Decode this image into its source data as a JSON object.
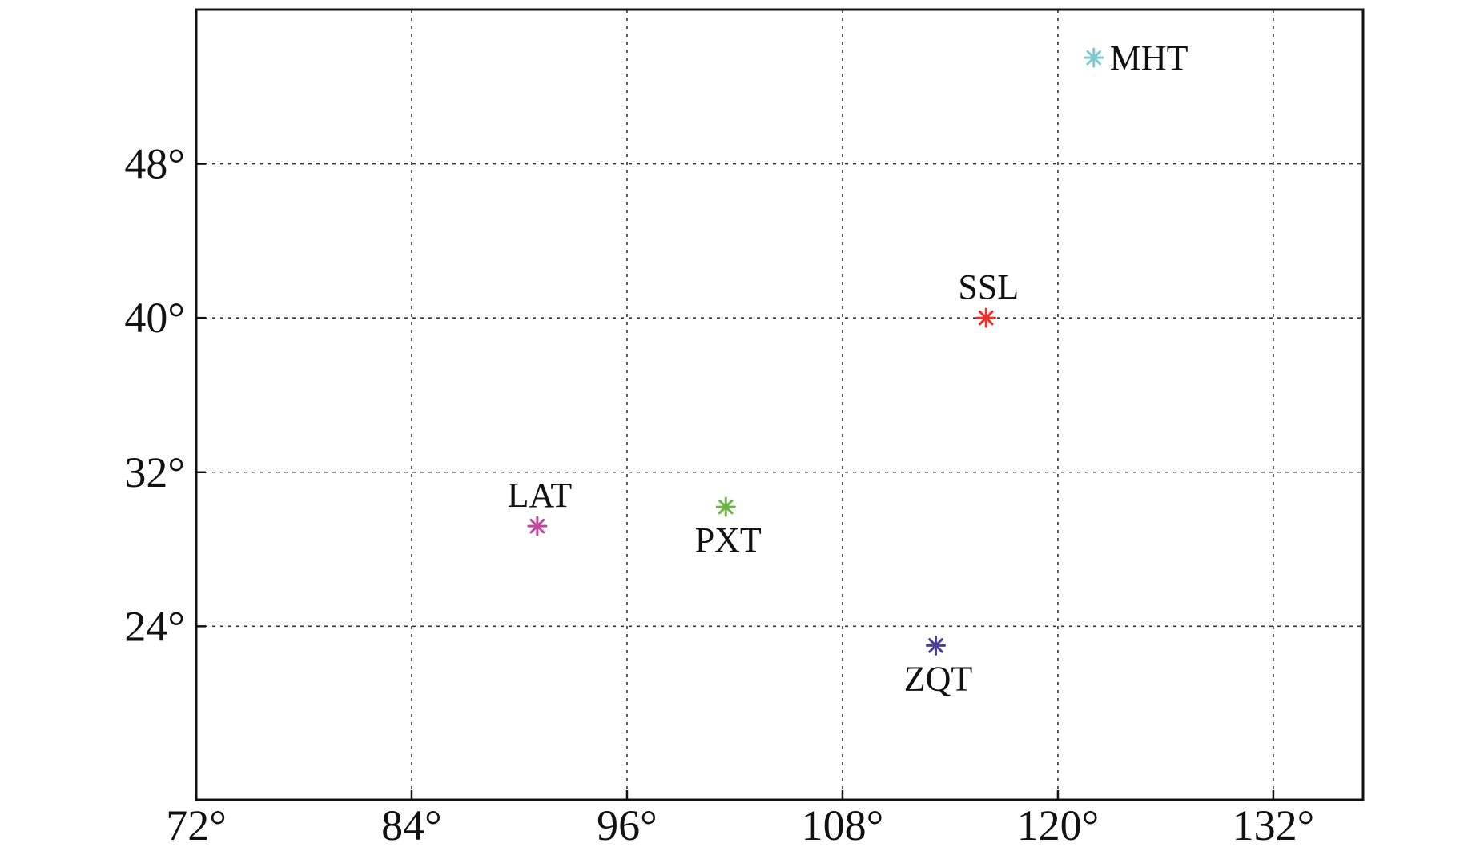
{
  "chart_data": {
    "type": "scatter",
    "title": "",
    "xlabel": "",
    "ylabel": "",
    "xlim": [
      72,
      137
    ],
    "ylim": [
      15,
      56
    ],
    "grid": true,
    "marker": "asterisk",
    "x_ticks": [
      {
        "value": 72,
        "label": "72°"
      },
      {
        "value": 84,
        "label": "84°"
      },
      {
        "value": 96,
        "label": "96°"
      },
      {
        "value": 108,
        "label": "108°"
      },
      {
        "value": 120,
        "label": "120°"
      },
      {
        "value": 132,
        "label": "132°"
      }
    ],
    "y_ticks": [
      {
        "value": 24,
        "label": "24°"
      },
      {
        "value": 32,
        "label": "32°"
      },
      {
        "value": 40,
        "label": "40°"
      },
      {
        "value": 48,
        "label": "48°"
      }
    ],
    "points": [
      {
        "label": "MHT",
        "x": 122.0,
        "y": 53.5,
        "color": "#7cc9cf",
        "label_position": "right"
      },
      {
        "label": "SSL",
        "x": 116.0,
        "y": 40.0,
        "color": "#e8322f",
        "label_position": "above"
      },
      {
        "label": "LAT",
        "x": 91.0,
        "y": 29.2,
        "color": "#c0479b",
        "label_position": "above"
      },
      {
        "label": "PXT",
        "x": 101.5,
        "y": 30.2,
        "color": "#6cb544",
        "label_position": "below"
      },
      {
        "label": "ZQT",
        "x": 113.2,
        "y": 23.0,
        "color": "#4c3f98",
        "label_position": "below"
      }
    ]
  }
}
